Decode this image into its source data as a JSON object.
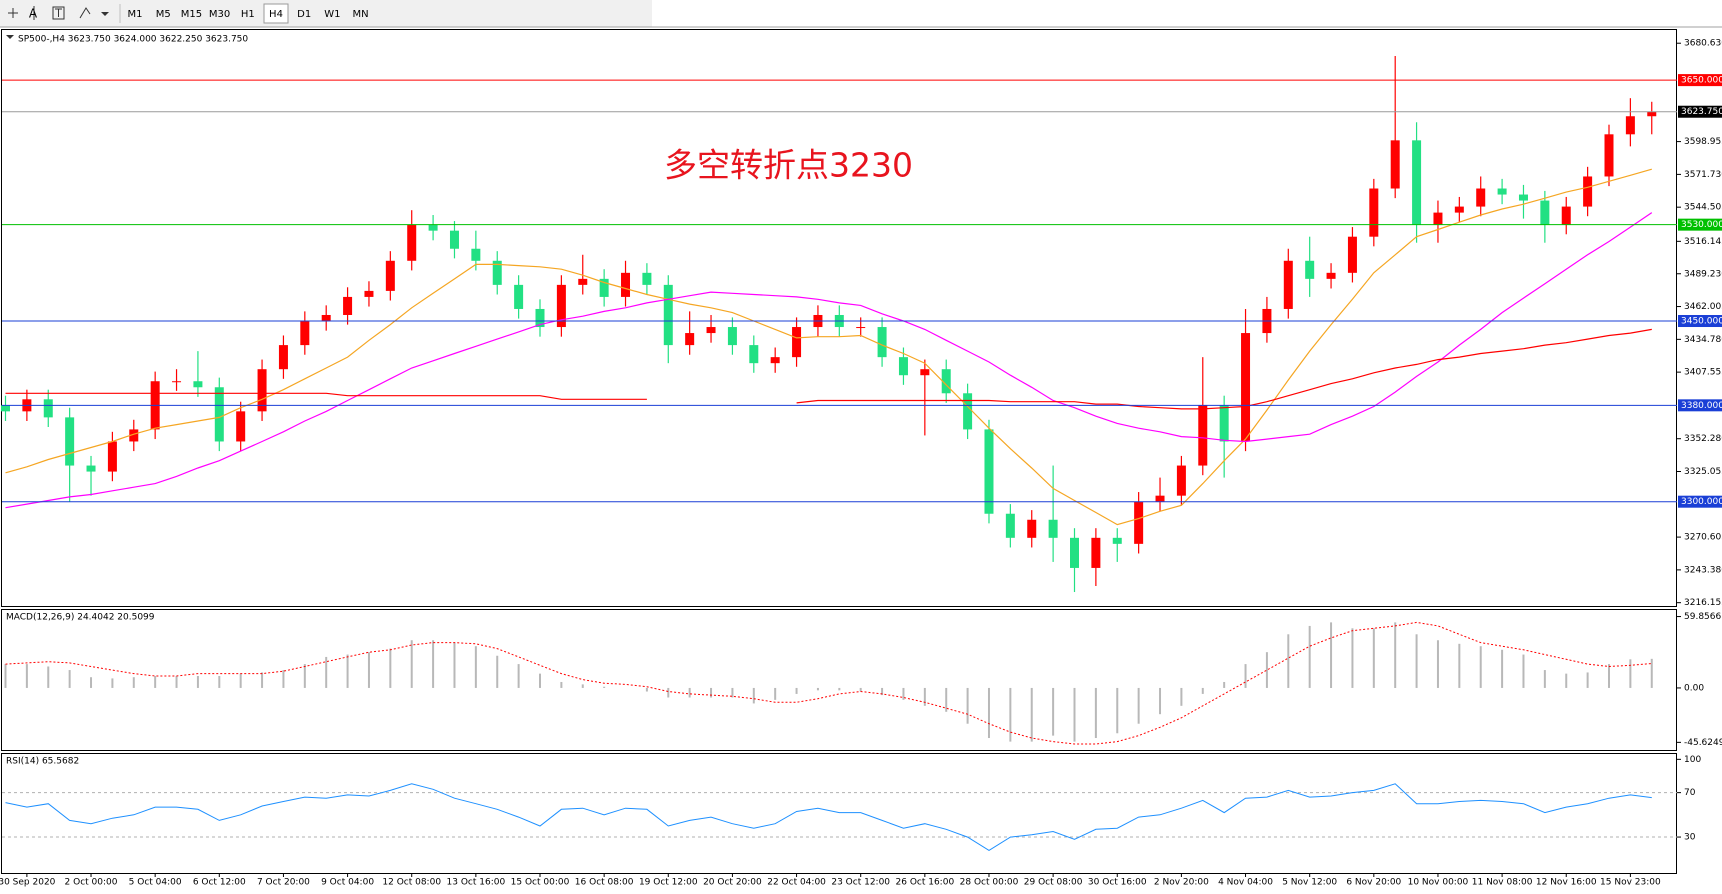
{
  "toolbar": {
    "text_tool": "A",
    "timeframes": [
      "M1",
      "M5",
      "M15",
      "M30",
      "H1",
      "H4",
      "D1",
      "W1",
      "MN"
    ],
    "active": "H4"
  },
  "chart_data": [
    {
      "type": "candlestick",
      "title": "SP500-,H4 3623.750 3624.000 3622.250 3623.750",
      "annotation": "多空转折点3230",
      "up_color": "#ff0000",
      "down_color": "#22e083",
      "open": [
        3380,
        3375,
        3385,
        3370,
        3330,
        3325,
        3350,
        3360,
        3400,
        3400,
        3395,
        3350,
        3375,
        3410,
        3430,
        3450,
        3455,
        3470,
        3475,
        3500,
        3530,
        3525,
        3510,
        3500,
        3480,
        3460,
        3445,
        3480,
        3485,
        3470,
        3490,
        3480,
        3430,
        3440,
        3445,
        3430,
        3415,
        3420,
        3445,
        3455,
        3445,
        3445,
        3420,
        3405,
        3410,
        3390,
        3360,
        3290,
        3270,
        3285,
        3270,
        3245,
        3270,
        3265,
        3300,
        3305,
        3330,
        3380,
        3350,
        3440,
        3460,
        3500,
        3485,
        3490,
        3520,
        3560,
        3600,
        3530,
        3540,
        3545,
        3560,
        3555,
        3550,
        3530,
        3545,
        3570,
        3605,
        3620
      ],
      "high": [
        3388,
        3393,
        3393,
        3378,
        3338,
        3358,
        3368,
        3408,
        3410,
        3425,
        3403,
        3383,
        3418,
        3438,
        3458,
        3463,
        3478,
        3483,
        3508,
        3542,
        3538,
        3533,
        3525,
        3508,
        3488,
        3468,
        3488,
        3505,
        3493,
        3500,
        3498,
        3488,
        3458,
        3455,
        3453,
        3438,
        3428,
        3453,
        3463,
        3463,
        3453,
        3453,
        3428,
        3418,
        3418,
        3398,
        3368,
        3298,
        3293,
        3330,
        3278,
        3278,
        3278,
        3308,
        3320,
        3338,
        3420,
        3388,
        3460,
        3470,
        3510,
        3520,
        3498,
        3528,
        3568,
        3670,
        3615,
        3550,
        3553,
        3570,
        3568,
        3563,
        3558,
        3553,
        3578,
        3613,
        3635,
        3632
      ],
      "low": [
        3367,
        3367,
        3362,
        3300,
        3305,
        3317,
        3342,
        3352,
        3392,
        3387,
        3342,
        3342,
        3367,
        3402,
        3422,
        3442,
        3447,
        3462,
        3467,
        3492,
        3517,
        3502,
        3492,
        3472,
        3452,
        3437,
        3437,
        3472,
        3462,
        3462,
        3472,
        3415,
        3422,
        3432,
        3422,
        3407,
        3407,
        3412,
        3437,
        3437,
        3437,
        3412,
        3397,
        3355,
        3382,
        3352,
        3282,
        3262,
        3262,
        3250,
        3225,
        3230,
        3250,
        3257,
        3292,
        3297,
        3322,
        3320,
        3342,
        3432,
        3452,
        3470,
        3477,
        3482,
        3512,
        3552,
        3515,
        3515,
        3532,
        3537,
        3547,
        3535,
        3515,
        3522,
        3537,
        3562,
        3595,
        3605
      ],
      "close": [
        3375,
        3385,
        3370,
        3330,
        3325,
        3350,
        3360,
        3400,
        3400,
        3395,
        3350,
        3375,
        3410,
        3430,
        3450,
        3455,
        3470,
        3475,
        3500,
        3530,
        3525,
        3510,
        3500,
        3480,
        3460,
        3445,
        3480,
        3485,
        3470,
        3490,
        3480,
        3430,
        3440,
        3445,
        3430,
        3415,
        3420,
        3445,
        3455,
        3445,
        3445,
        3420,
        3405,
        3410,
        3390,
        3360,
        3290,
        3270,
        3285,
        3270,
        3245,
        3270,
        3265,
        3300,
        3305,
        3330,
        3380,
        3350,
        3440,
        3460,
        3500,
        3485,
        3490,
        3520,
        3560,
        3600,
        3530,
        3540,
        3545,
        3560,
        3555,
        3550,
        3530,
        3545,
        3570,
        3605,
        3620,
        3623.75
      ],
      "series": [
        {
          "color": "#f5a623",
          "values": [
            3324,
            3329,
            3335,
            3340,
            3345,
            3350,
            3356,
            3361,
            3364,
            3367,
            3370,
            3378,
            3385,
            3393,
            3402,
            3411,
            3420,
            3434,
            3447,
            3461,
            3473,
            3485,
            3497,
            3497,
            3496,
            3495,
            3493,
            3488,
            3482,
            3477,
            3472,
            3468,
            3464,
            3461,
            3457,
            3450,
            3443,
            3436,
            3437,
            3437,
            3438,
            3430,
            3423,
            3415,
            3397,
            3379,
            3361,
            3344,
            3328,
            3311,
            3301,
            3291,
            3281,
            3286,
            3292,
            3297,
            3315,
            3334,
            3352,
            3376,
            3401,
            3425,
            3447,
            3468,
            3490,
            3505,
            3520,
            3526,
            3532,
            3538,
            3543,
            3547,
            3552,
            3557,
            3561,
            3566,
            3571,
            3576
          ]
        },
        {
          "color": "#ff00ff",
          "values": [
            3295,
            3298,
            3301,
            3304,
            3306,
            3309,
            3312,
            3315,
            3321,
            3328,
            3334,
            3342,
            3350,
            3358,
            3367,
            3375,
            3384,
            3393,
            3402,
            3411,
            3417,
            3423,
            3429,
            3435,
            3441,
            3447,
            3451,
            3454,
            3458,
            3461,
            3465,
            3468,
            3471,
            3474,
            3473,
            3472,
            3471,
            3470,
            3468,
            3465,
            3463,
            3456,
            3450,
            3443,
            3434,
            3425,
            3416,
            3405,
            3395,
            3384,
            3378,
            3371,
            3365,
            3361,
            3358,
            3354,
            3353,
            3351,
            3350,
            3352,
            3354,
            3356,
            3364,
            3371,
            3379,
            3391,
            3404,
            3416,
            3430,
            3443,
            3457,
            3469,
            3481,
            3493,
            3505,
            3516,
            3528,
            3540
          ]
        },
        {
          "color": "#ff0000",
          "values": [
            3390,
            3390,
            3390,
            3390,
            3390,
            3390,
            3390,
            3390,
            3390,
            3390,
            3390,
            3390,
            3390,
            3390,
            3390,
            3390,
            3388,
            3388,
            3388,
            3388,
            3388,
            3388,
            3388,
            3388,
            3388,
            3388,
            3385,
            3385,
            3385,
            3385,
            3385,
            null,
            null,
            null,
            null,
            null,
            null,
            3382,
            3384,
            3384,
            3384,
            3384,
            3384,
            3384,
            3384,
            3384,
            3384,
            3383,
            3383,
            3383,
            3383,
            3381,
            3381,
            3379,
            3378,
            3377,
            3377,
            3378,
            3379,
            3383,
            3388,
            3393,
            3398,
            3402,
            3407,
            3411,
            3414,
            3418,
            3420,
            3423,
            3425,
            3427,
            3430,
            3432,
            3435,
            3438,
            3440,
            3443
          ]
        }
      ],
      "levels": [
        {
          "value": 3650,
          "label": "3650.000",
          "color": "#ff0000"
        },
        {
          "value": 3530,
          "label": "3530.000",
          "color": "#00c000"
        },
        {
          "value": 3450,
          "label": "3450.000",
          "color": "#1a3fd6"
        },
        {
          "value": 3380,
          "label": "3380.000",
          "color": "#1a3fd6"
        },
        {
          "value": 3300,
          "label": "3300.000",
          "color": "#1a3fd6"
        }
      ],
      "current": {
        "value": 3623.75,
        "label": "3623.750",
        "color": "#000000"
      },
      "ylim": [
        3213.4,
        3691.6
      ],
      "yticks": [
        {
          "value": 3680.63,
          "label": "3680.630"
        },
        {
          "value": 3598.955,
          "label": "3598.955"
        },
        {
          "value": 3571.73,
          "label": "3571.730"
        },
        {
          "value": 3544.505,
          "label": "3544.505"
        },
        {
          "value": 3516.145,
          "label": "3516.145"
        },
        {
          "value": 3489.23,
          "label": "3489.230"
        },
        {
          "value": 3462.005,
          "label": "3462.005"
        },
        {
          "value": 3434.78,
          "label": "3434.780"
        },
        {
          "value": 3407.555,
          "label": "3407.555"
        },
        {
          "value": 3352.28,
          "label": "3352.280"
        },
        {
          "value": 3325.055,
          "label": "3325.055"
        },
        {
          "value": 3270.605,
          "label": "3270.605"
        },
        {
          "value": 3243.38,
          "label": "3243.380"
        },
        {
          "value": 3216.155,
          "label": "3216.155"
        }
      ]
    },
    {
      "type": "macd",
      "title": "MACD(12,26,9) 24.4042 20.5099",
      "histogram_color": "#b8b8b8",
      "signal_color": "#ff0000",
      "histogram": [
        20,
        20,
        18,
        15,
        9,
        8,
        9,
        10,
        10,
        10,
        10,
        12,
        13,
        15,
        20,
        26,
        28,
        30,
        33,
        40,
        40,
        38,
        35,
        27,
        20,
        12,
        5,
        3,
        1,
        0,
        -3,
        -8,
        -8,
        -8,
        -8,
        -13,
        -10,
        -5,
        -2,
        -2,
        -3,
        -6,
        -10,
        -15,
        -20,
        -30,
        -42,
        -45,
        -45,
        -40,
        -45,
        -42,
        -38,
        -30,
        -22,
        -15,
        -5,
        5,
        20,
        30,
        45,
        52,
        55,
        50,
        50,
        55,
        45,
        40,
        37,
        35,
        32,
        28,
        15,
        12,
        13,
        20,
        24,
        24.4042
      ],
      "signal": [
        20,
        21,
        22,
        21,
        18,
        15,
        12,
        10,
        10,
        12,
        12,
        12,
        12,
        14,
        18,
        22,
        26,
        30,
        32,
        36,
        38,
        38,
        37,
        33,
        26,
        19,
        12,
        7,
        4,
        3,
        1,
        -3,
        -5,
        -6,
        -7,
        -9,
        -12,
        -12,
        -9,
        -5,
        -3,
        -5,
        -8,
        -12,
        -17,
        -22,
        -30,
        -37,
        -42,
        -45,
        -47,
        -47,
        -45,
        -40,
        -33,
        -25,
        -15,
        -5,
        5,
        15,
        25,
        35,
        42,
        48,
        50,
        52,
        55,
        52,
        45,
        38,
        35,
        32,
        28,
        24,
        20,
        18,
        19,
        20.5099
      ],
      "ylim": [
        -52.04,
        65.36
      ],
      "yticks": [
        59.8566,
        {
          "value": 0,
          "label": "0.00"
        },
        -45.6249
      ]
    },
    {
      "type": "line",
      "title": "RSI(14) 65.5682",
      "color": "#1e90ff",
      "categories": [
        null,
        "30 Sep 2020",
        null,
        null,
        "2 Oct 00:00",
        null,
        null,
        "5 Oct 04:00",
        null,
        null,
        "6 Oct 12:00",
        null,
        null,
        "7 Oct 20:00",
        null,
        null,
        "9 Oct 04:00",
        null,
        null,
        "12 Oct 08:00",
        null,
        null,
        "13 Oct 16:00",
        null,
        null,
        "15 Oct 00:00",
        null,
        null,
        "16 Oct 08:00",
        null,
        null,
        "19 Oct 12:00",
        null,
        null,
        "20 Oct 20:00",
        null,
        null,
        "22 Oct 04:00",
        null,
        null,
        "23 Oct 12:00",
        null,
        null,
        "26 Oct 16:00",
        null,
        null,
        "28 Oct 00:00",
        null,
        null,
        "29 Oct 08:00",
        null,
        null,
        "30 Oct 16:00",
        null,
        null,
        "2 Nov 20:00",
        null,
        null,
        "4 Nov 04:00",
        null,
        null,
        "5 Nov 12:00",
        null,
        null,
        "6 Nov 20:00",
        null,
        null,
        "10 Nov 00:00",
        null,
        null,
        "11 Nov 08:00",
        null,
        null,
        "12 Nov 16:00",
        null,
        null,
        "15 Nov 23:00",
        null
      ],
      "values": [
        61,
        57,
        60,
        45,
        42,
        47,
        50,
        57,
        57,
        55,
        45,
        50,
        58,
        62,
        66,
        65,
        68,
        67,
        72,
        78,
        73,
        65,
        60,
        55,
        48,
        40,
        55,
        56,
        50,
        56,
        55,
        40,
        45,
        48,
        42,
        38,
        42,
        53,
        56,
        52,
        52,
        45,
        38,
        42,
        37,
        30,
        18,
        30,
        32,
        35,
        28,
        37,
        38,
        48,
        50,
        56,
        63,
        52,
        65,
        66,
        72,
        66,
        67,
        70,
        72,
        78,
        60,
        60,
        62,
        63,
        62,
        60,
        52,
        57,
        60,
        65,
        68,
        65.5682
      ],
      "levels": [
        70,
        30
      ],
      "ylim": [
        -2.37,
        104.8
      ],
      "yticks": [
        100,
        70,
        30
      ]
    }
  ]
}
